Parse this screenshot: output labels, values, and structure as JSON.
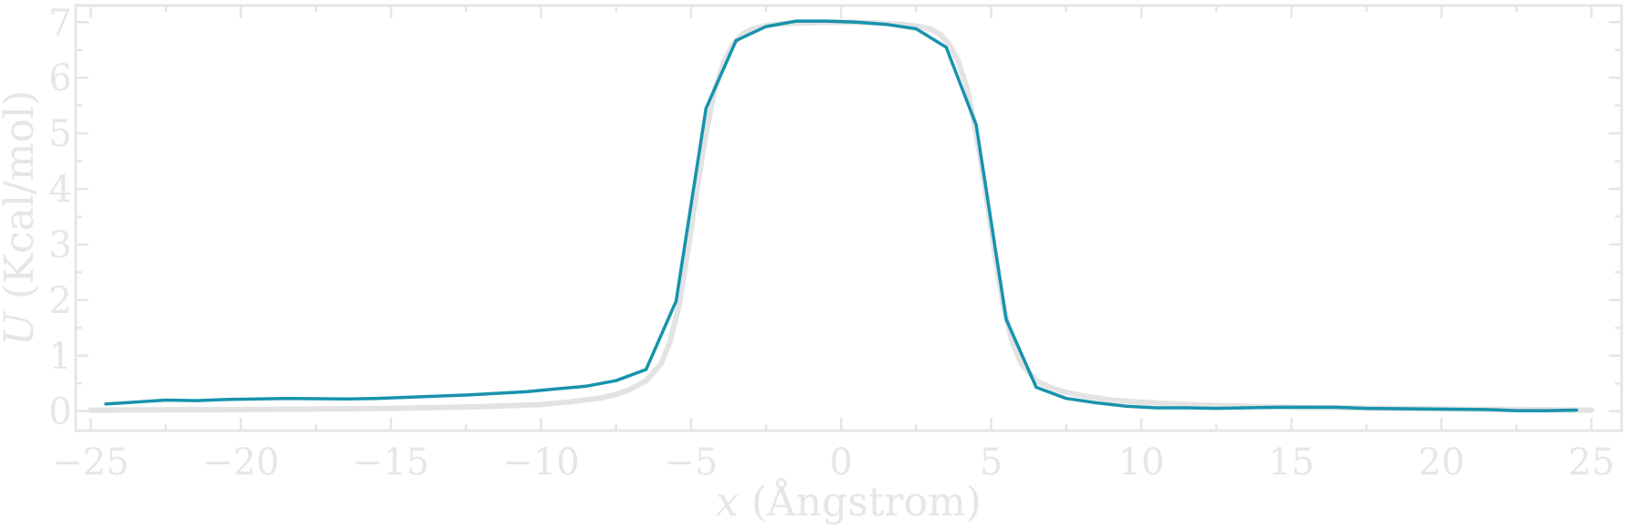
{
  "chart_data": {
    "type": "line",
    "xlabel_var": "x",
    "xlabel_unit": " (Ångstrom)",
    "ylabel_var": "U",
    "ylabel_unit": " (Kcal/mol)",
    "xlim": [
      -25.5,
      26
    ],
    "ylim": [
      -0.35,
      7.3
    ],
    "xticks": [
      -25,
      -20,
      -15,
      -10,
      -5,
      0,
      5,
      10,
      15,
      20,
      25
    ],
    "xtick_labels": [
      "−25",
      "−20",
      "−15",
      "−10",
      "−5",
      "0",
      "5",
      "10",
      "15",
      "20",
      "25"
    ],
    "yticks": [
      0,
      1,
      2,
      3,
      4,
      5,
      6,
      7
    ],
    "ytick_labels": [
      "0",
      "1",
      "2",
      "3",
      "4",
      "5",
      "6",
      "7"
    ],
    "grid": false,
    "series": [
      {
        "color": "#e3e3e3",
        "x": [
          -25,
          -20,
          -15,
          -12,
          -10,
          -9,
          -8,
          -7.5,
          -7,
          -6.5,
          -6,
          -5.7,
          -5.4,
          -5.1,
          -4.8,
          -4.5,
          -4.2,
          -3.9,
          -3.6,
          -3.3,
          -3,
          -2.5,
          -2,
          -1,
          0,
          1,
          2,
          2.5,
          3,
          3.3,
          3.6,
          3.9,
          4.2,
          4.5,
          4.8,
          5.1,
          5.4,
          5.7,
          6,
          6.5,
          7,
          7.5,
          8,
          9,
          10,
          12,
          15,
          20,
          25
        ],
        "y": [
          0.02,
          0.03,
          0.05,
          0.08,
          0.12,
          0.17,
          0.24,
          0.3,
          0.4,
          0.55,
          0.85,
          1.25,
          1.9,
          2.9,
          4.0,
          5.0,
          5.8,
          6.3,
          6.6,
          6.78,
          6.87,
          6.94,
          6.97,
          6.99,
          7.0,
          6.99,
          6.96,
          6.93,
          6.87,
          6.78,
          6.6,
          6.3,
          5.8,
          5.0,
          4.0,
          2.9,
          1.9,
          1.25,
          0.85,
          0.55,
          0.42,
          0.34,
          0.28,
          0.2,
          0.16,
          0.11,
          0.07,
          0.04,
          0.02
        ]
      },
      {
        "color": "#1793ad",
        "x": [
          -24.5,
          -22.5,
          -21.5,
          -20.5,
          -18.5,
          -16.5,
          -15.5,
          -14.5,
          -12.5,
          -10.5,
          -9.5,
          -8.5,
          -7.5,
          -6.5,
          -5.5,
          -4.5,
          -3.5,
          -2.5,
          -1.5,
          -0.5,
          0.5,
          1.5,
          2.5,
          3.5,
          4.5,
          5.5,
          6.5,
          7.5,
          8.5,
          9.5,
          10.5,
          11.5,
          12.5,
          14.5,
          16.5,
          17.5,
          19.5,
          21.5,
          22.5,
          23.5,
          24.5
        ],
        "y": [
          0.13,
          0.2,
          0.19,
          0.21,
          0.23,
          0.22,
          0.23,
          0.25,
          0.29,
          0.35,
          0.4,
          0.45,
          0.55,
          0.75,
          1.98,
          5.45,
          6.67,
          6.92,
          7.02,
          7.02,
          7.0,
          6.96,
          6.88,
          6.55,
          5.15,
          1.65,
          0.43,
          0.23,
          0.15,
          0.09,
          0.06,
          0.06,
          0.05,
          0.07,
          0.07,
          0.05,
          0.04,
          0.03,
          0.01,
          0.01,
          0.02
        ]
      }
    ]
  }
}
